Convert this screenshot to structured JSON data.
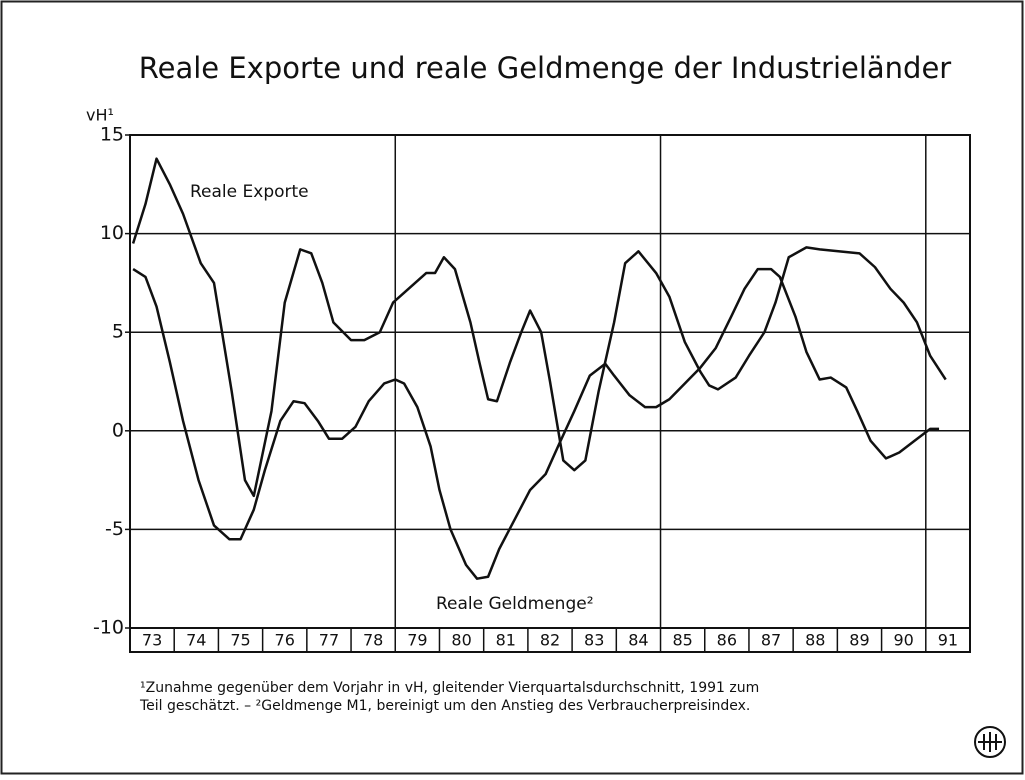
{
  "chart_data": {
    "type": "line",
    "title": "Reale Exporte und reale Geldmenge der Industrieländer",
    "y_label": "vH¹",
    "categories": [
      "73",
      "74",
      "75",
      "76",
      "77",
      "78",
      "79",
      "80",
      "81",
      "82",
      "83",
      "84",
      "85",
      "86",
      "87",
      "88",
      "89",
      "90",
      "91"
    ],
    "xlim": [
      73,
      92
    ],
    "ylim": [
      -10,
      15
    ],
    "yticks": [
      -10,
      -5,
      0,
      5,
      10,
      15
    ],
    "grid": true,
    "vertical_lines": [
      79,
      85,
      91
    ],
    "series": [
      {
        "name": "Reale Exporte",
        "color": "#111111",
        "x": [
          73.07,
          73.35,
          73.6,
          73.9,
          74.2,
          74.6,
          74.9,
          75.3,
          75.6,
          75.8,
          76.2,
          76.5,
          76.85,
          77.1,
          77.35,
          77.6,
          78.0,
          78.3,
          78.65,
          78.95,
          79.3,
          79.7,
          79.9,
          80.1,
          80.35,
          80.7,
          80.9,
          81.1,
          81.3,
          81.6,
          81.85,
          82.05,
          82.3,
          82.5,
          82.8,
          83.05,
          83.3,
          83.6,
          83.95,
          84.2,
          84.5,
          84.9,
          85.2,
          85.55,
          85.9,
          86.1,
          86.3,
          86.7,
          87.0,
          87.35,
          87.6,
          87.9,
          88.3,
          88.6,
          89.05,
          89.5,
          89.85,
          90.2,
          90.5,
          90.8,
          91.1,
          91.45
        ],
        "values": [
          9.5,
          11.5,
          13.8,
          12.5,
          11,
          8.5,
          7.5,
          2,
          -2.5,
          -3.3,
          1,
          6.5,
          9.2,
          9.0,
          7.5,
          5.5,
          4.6,
          4.6,
          5,
          6.5,
          7.2,
          8.0,
          8.0,
          8.8,
          8.2,
          5.5,
          3.5,
          1.6,
          1.5,
          3.5,
          5,
          6.1,
          5,
          2.5,
          -1.5,
          -2,
          -1.5,
          2,
          5.5,
          8.5,
          9.1,
          8.0,
          6.8,
          4.5,
          3,
          2.3,
          2.1,
          2.7,
          3.8,
          5,
          6.5,
          8.8,
          9.3,
          9.2,
          9.1,
          9.0,
          8.3,
          7.2,
          6.5,
          5.5,
          3.8,
          2.6
        ]
      },
      {
        "name": "Reale Geldmenge²",
        "color": "#111111",
        "x": [
          73.07,
          73.35,
          73.6,
          73.9,
          74.2,
          74.55,
          74.9,
          75.25,
          75.5,
          75.8,
          76.05,
          76.4,
          76.7,
          76.95,
          77.25,
          77.5,
          77.8,
          78.1,
          78.4,
          78.75,
          79.0,
          79.2,
          79.5,
          79.8,
          80.0,
          80.25,
          80.6,
          80.85,
          81.1,
          81.35,
          81.7,
          82.05,
          82.4,
          82.7,
          83.05,
          83.4,
          83.75,
          83.95,
          84.3,
          84.65,
          84.9,
          85.2,
          85.55,
          85.9,
          86.25,
          86.6,
          86.9,
          87.2,
          87.5,
          87.7,
          88.05,
          88.3,
          88.6,
          88.85,
          89.2,
          89.45,
          89.75,
          90.1,
          90.4,
          90.75,
          91.1,
          91.3
        ],
        "values": [
          8.2,
          7.8,
          6.3,
          3.5,
          0.5,
          -2.5,
          -4.8,
          -5.5,
          -5.5,
          -4,
          -2,
          0.5,
          1.5,
          1.4,
          0.5,
          -0.4,
          -0.4,
          0.2,
          1.5,
          2.4,
          2.6,
          2.4,
          1.2,
          -0.8,
          -3,
          -5,
          -6.8,
          -7.5,
          -7.4,
          -6,
          -4.5,
          -3,
          -2.2,
          -0.7,
          1,
          2.8,
          3.4,
          2.8,
          1.8,
          1.2,
          1.2,
          1.6,
          2.4,
          3.2,
          4.2,
          5.8,
          7.2,
          8.2,
          8.2,
          7.8,
          5.8,
          4,
          2.6,
          2.7,
          2.2,
          1,
          -0.5,
          -1.4,
          -1.1,
          -0.5,
          0.1,
          0.1
        ]
      }
    ],
    "footnote": [
      "¹Zunahme gegenüber dem Vorjahr in vH, gleitender Vierquartalsdurchschnitt, 1991 zum",
      "Teil geschätzt. – ²Geldmenge M1, bereinigt um den Anstieg des Verbraucherpreisindex."
    ]
  }
}
